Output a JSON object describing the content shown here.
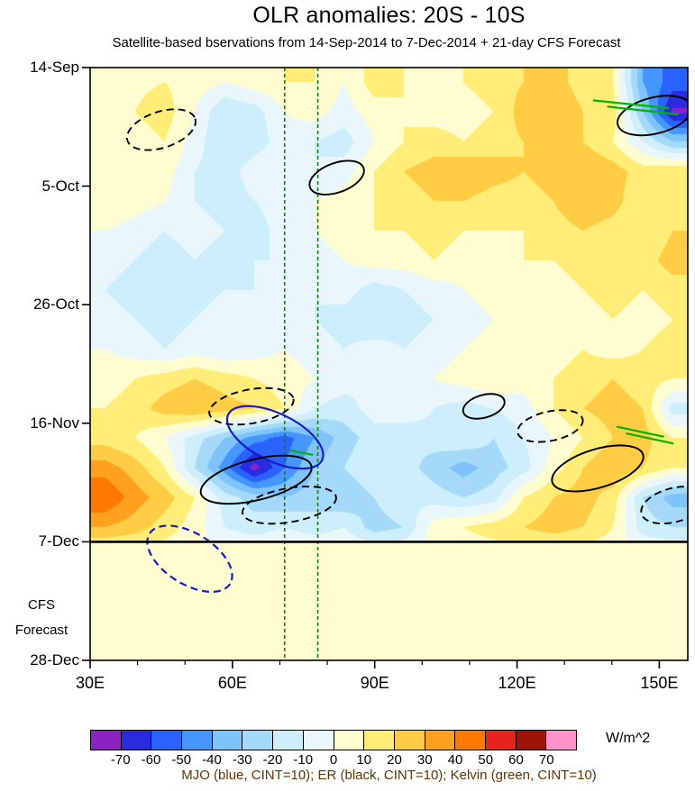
{
  "title": "OLR anomalies: 20S - 10S",
  "subtitle": "Satellite-based bservations from 14-Sep-2014 to 7-Dec-2014 + 21-day CFS Forecast",
  "forecast_label": {
    "line1": "CFS",
    "line2": "Forecast"
  },
  "colorbar_units": "W/m^2",
  "legend_caption": "MJO (blue, CINT=10); ER (black, CINT=10); Kelvin (green, CINT=10)",
  "legend_color": "#663300",
  "chart_data": {
    "type": "heatmap",
    "title": "OLR anomalies: 20S - 10S",
    "subtitle": "Satellite-based bservations from 14-Sep-2014 to 7-Dec-2014 + 21-day CFS Forecast",
    "x_axis": {
      "label": "longitude",
      "range": [
        30,
        156
      ],
      "ticks": [
        30,
        60,
        90,
        120,
        150
      ],
      "tick_labels": [
        "30E",
        "60E",
        "90E",
        "120E",
        "150E"
      ],
      "minor_step": 10
    },
    "y_axis": {
      "label": "time (downward)",
      "range_days": [
        0,
        105
      ],
      "start_date": "14-Sep-2014",
      "ticks_days": [
        0,
        21,
        42,
        63,
        84,
        105
      ],
      "tick_labels": [
        "14-Sep",
        "5-Oct",
        "26-Oct",
        "16-Nov",
        "7-Dec",
        "28-Dec"
      ]
    },
    "forecast_divider_day": 84,
    "forecast_region_label": "CFS Forecast",
    "reference_lines_lon": [
      71,
      78
    ],
    "reference_line_color": "#1a7a1a",
    "colorbar": {
      "units": "W/m^2",
      "levels": [
        -70,
        -60,
        -50,
        -40,
        -30,
        -20,
        -10,
        0,
        10,
        20,
        30,
        40,
        50,
        60,
        70
      ],
      "colors": [
        "#8b23c4",
        "#2a2ae0",
        "#2a62ff",
        "#4596ff",
        "#7ec4fb",
        "#a5d9fa",
        "#cdeefb",
        "#e9f7fd",
        "#fffdd0",
        "#ffed77",
        "#ffcc44",
        "#ffa01e",
        "#ff7800",
        "#e6231e",
        "#9e1508",
        "#ff92c8"
      ]
    },
    "grid": {
      "description": "Estimated OLR anomaly field (W/m^2), 20 time rows (5.25-day steps, 14-Sep to 28-Dec) x 20 longitude columns (30E-156E); rows after 7-Dec are the near-neutral CFS forecast band",
      "lon_range": [
        30,
        156
      ],
      "day_range": [
        0,
        105
      ],
      "forecast_value": 3,
      "values": [
        [
          5,
          8,
          10,
          5,
          0,
          5,
          10,
          10,
          0,
          15,
          10,
          5,
          10,
          15,
          20,
          25,
          15,
          10,
          -40,
          -55
        ],
        [
          5,
          10,
          15,
          0,
          -20,
          -15,
          0,
          5,
          -5,
          5,
          10,
          5,
          5,
          10,
          25,
          30,
          20,
          15,
          -30,
          -72
        ],
        [
          0,
          5,
          10,
          -5,
          -20,
          -15,
          -5,
          -10,
          -15,
          0,
          10,
          15,
          10,
          15,
          20,
          25,
          20,
          10,
          -10,
          -30
        ],
        [
          5,
          10,
          5,
          -10,
          -15,
          -5,
          0,
          -10,
          -5,
          10,
          20,
          25,
          30,
          25,
          20,
          25,
          30,
          25,
          15,
          20
        ],
        [
          10,
          5,
          0,
          -10,
          -15,
          -10,
          -5,
          0,
          5,
          10,
          15,
          20,
          20,
          15,
          15,
          20,
          30,
          25,
          10,
          15
        ],
        [
          0,
          -5,
          -10,
          -5,
          -10,
          -15,
          -5,
          0,
          5,
          10,
          10,
          15,
          10,
          10,
          10,
          15,
          20,
          15,
          10,
          20
        ],
        [
          -5,
          -10,
          -15,
          -10,
          -15,
          -10,
          -10,
          -5,
          0,
          5,
          5,
          10,
          5,
          5,
          10,
          10,
          15,
          10,
          15,
          25
        ],
        [
          -10,
          -15,
          -10,
          -15,
          -10,
          -10,
          -5,
          -10,
          -5,
          -15,
          -10,
          -5,
          0,
          5,
          5,
          5,
          10,
          15,
          10,
          15
        ],
        [
          -5,
          -10,
          -15,
          -10,
          -5,
          -10,
          -5,
          -10,
          -15,
          -20,
          -15,
          -10,
          -5,
          0,
          5,
          5,
          5,
          10,
          5,
          10
        ],
        [
          0,
          -5,
          -10,
          -5,
          -10,
          -5,
          0,
          -5,
          -10,
          -5,
          -10,
          -5,
          0,
          5,
          0,
          5,
          10,
          5,
          10,
          15
        ],
        [
          5,
          10,
          15,
          20,
          15,
          10,
          5,
          0,
          -5,
          -10,
          -5,
          0,
          5,
          10,
          5,
          10,
          15,
          20,
          15,
          10
        ],
        [
          10,
          15,
          25,
          30,
          25,
          20,
          10,
          -10,
          -15,
          -5,
          0,
          -10,
          -15,
          -10,
          -5,
          10,
          20,
          25,
          20,
          -15
        ],
        [
          15,
          10,
          0,
          -15,
          -30,
          -45,
          -55,
          -40,
          -25,
          -15,
          -20,
          -15,
          -10,
          -20,
          -10,
          0,
          10,
          20,
          25,
          10
        ],
        [
          35,
          25,
          10,
          -20,
          -45,
          -75,
          -50,
          -30,
          -20,
          -10,
          -15,
          -25,
          -35,
          -25,
          -15,
          5,
          20,
          30,
          20,
          10
        ],
        [
          50,
          35,
          25,
          10,
          -15,
          -25,
          -30,
          -25,
          -30,
          -20,
          -10,
          -15,
          -20,
          -15,
          10,
          20,
          25,
          15,
          -20,
          -35
        ],
        [
          30,
          25,
          15,
          5,
          -10,
          -15,
          -10,
          -15,
          -10,
          -25,
          -20,
          5,
          10,
          15,
          20,
          25,
          20,
          10,
          -15,
          -20
        ],
        [
          3,
          3,
          3,
          3,
          3,
          3,
          3,
          3,
          3,
          3,
          3,
          3,
          3,
          3,
          3,
          3,
          3,
          3,
          3,
          3
        ],
        [
          3,
          3,
          3,
          3,
          3,
          3,
          3,
          3,
          3,
          3,
          3,
          3,
          3,
          3,
          3,
          3,
          3,
          3,
          3,
          3
        ],
        [
          3,
          3,
          3,
          3,
          3,
          3,
          3,
          3,
          3,
          3,
          3,
          3,
          3,
          3,
          3,
          3,
          3,
          3,
          3,
          3
        ],
        [
          3,
          3,
          3,
          3,
          3,
          3,
          3,
          3,
          3,
          3,
          3,
          3,
          3,
          3,
          3,
          3,
          3,
          3,
          3,
          3
        ]
      ]
    },
    "annotations": {
      "mjo_color": "#1a1acd",
      "er_color": "#000000",
      "kelvin_color": "#00b400",
      "ellipses": [
        {
          "wave": "ER",
          "style": "dashed",
          "color": "#000000",
          "lon": 45,
          "day": 11,
          "rx_lon": 7.5,
          "ry_day": 3.2,
          "rot": -18
        },
        {
          "wave": "ER",
          "style": "solid",
          "color": "#000000",
          "lon": 149,
          "day": 8.5,
          "rx_lon": 8,
          "ry_day": 3.2,
          "rot": -14
        },
        {
          "wave": "ER",
          "style": "solid",
          "color": "#000000",
          "lon": 82,
          "day": 19.5,
          "rx_lon": 6,
          "ry_day": 2.6,
          "rot": -20
        },
        {
          "wave": "ER",
          "style": "dashed",
          "color": "#000000",
          "lon": 64,
          "day": 60,
          "rx_lon": 9,
          "ry_day": 3,
          "rot": -10
        },
        {
          "wave": "ER",
          "style": "solid",
          "color": "#000000",
          "lon": 113,
          "day": 60,
          "rx_lon": 4.5,
          "ry_day": 2,
          "rot": -16
        },
        {
          "wave": "ER",
          "style": "dashed",
          "color": "#000000",
          "lon": 127,
          "day": 63.5,
          "rx_lon": 7,
          "ry_day": 2.6,
          "rot": -12
        },
        {
          "wave": "MJO",
          "style": "solid",
          "color": "#1a1acd",
          "lon": 69,
          "day": 65.5,
          "rx_lon": 11,
          "ry_day": 4.2,
          "rot": 26
        },
        {
          "wave": "ER",
          "style": "solid",
          "color": "#000000",
          "lon": 65,
          "day": 73,
          "rx_lon": 12,
          "ry_day": 3.6,
          "rot": -14
        },
        {
          "wave": "ER",
          "style": "dashed",
          "color": "#000000",
          "lon": 72,
          "day": 77.5,
          "rx_lon": 10,
          "ry_day": 3,
          "rot": -10
        },
        {
          "wave": "ER",
          "style": "solid",
          "color": "#000000",
          "lon": 137,
          "day": 71,
          "rx_lon": 10,
          "ry_day": 3.4,
          "rot": -17
        },
        {
          "wave": "ER",
          "style": "dashed",
          "color": "#000000",
          "lon": 153,
          "day": 77.5,
          "rx_lon": 7,
          "ry_day": 3,
          "rot": -15
        },
        {
          "wave": "MJO",
          "style": "dashed",
          "color": "#1a1acd",
          "lon": 51,
          "day": 87,
          "rx_lon": 10,
          "ry_day": 4.5,
          "rot": 32
        }
      ],
      "segments": [
        {
          "wave": "Kelvin",
          "color": "#00b400",
          "lon1": 136,
          "day1": 5.8,
          "lon2": 152,
          "day2": 7.2
        },
        {
          "wave": "Kelvin",
          "color": "#00b400",
          "lon1": 139,
          "day1": 6.9,
          "lon2": 154,
          "day2": 8.3
        },
        {
          "wave": "Kelvin",
          "color": "#00b400",
          "lon1": 141,
          "day1": 63.6,
          "lon2": 151,
          "day2": 65.4
        },
        {
          "wave": "Kelvin",
          "color": "#00b400",
          "lon1": 143,
          "day1": 64.8,
          "lon2": 153,
          "day2": 66.6
        },
        {
          "wave": "Kelvin",
          "color": "#00b400",
          "lon1": 72,
          "day1": 67.8,
          "lon2": 77,
          "day2": 68.6
        }
      ]
    },
    "legend": "MJO (blue, CINT=10); ER (black, CINT=10); Kelvin (green, CINT=10)",
    "legend_position": "bottom"
  }
}
